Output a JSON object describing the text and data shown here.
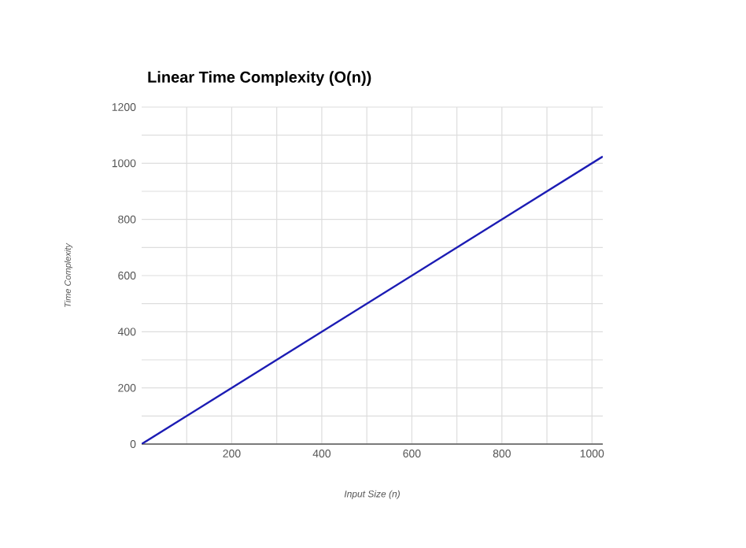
{
  "chart_data": {
    "type": "line",
    "title": "Linear Time Complexity (O(n))",
    "xlabel": "Input Size (n)",
    "ylabel": "Time Complexity",
    "x": [
      0,
      1024
    ],
    "series": [
      {
        "color": "#1c1cb4",
        "values": [
          0,
          1024
        ]
      }
    ],
    "xlim": [
      0,
      1024
    ],
    "ylim": [
      0,
      1200
    ],
    "xticks": [
      {
        "value": 100,
        "label": null
      },
      200,
      {
        "value": 300,
        "label": null
      },
      400,
      {
        "value": 500,
        "label": null
      },
      600,
      {
        "value": 700,
        "label": null
      },
      800,
      {
        "value": 900,
        "label": null
      },
      1000
    ],
    "yticks": [
      0,
      {
        "value": 100,
        "label": null
      },
      200,
      {
        "value": 300,
        "label": null
      },
      400,
      {
        "value": 500,
        "label": null
      },
      600,
      {
        "value": 700,
        "label": null
      },
      800,
      {
        "value": 900,
        "label": null
      },
      1000,
      {
        "value": 1100,
        "label": null
      },
      1200
    ],
    "grid": true,
    "marker": "none",
    "line_style": "solid"
  }
}
